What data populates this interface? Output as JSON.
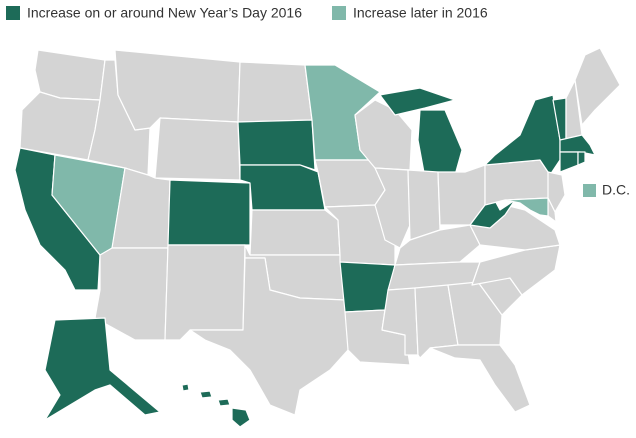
{
  "legend": [
    {
      "label": "Increase on or around New Year’s Day 2016",
      "color": "#1d6b58"
    },
    {
      "label": "Increase later in 2016",
      "color": "#80b8aa"
    }
  ],
  "annotation": {
    "label": "D.C."
  }
}
